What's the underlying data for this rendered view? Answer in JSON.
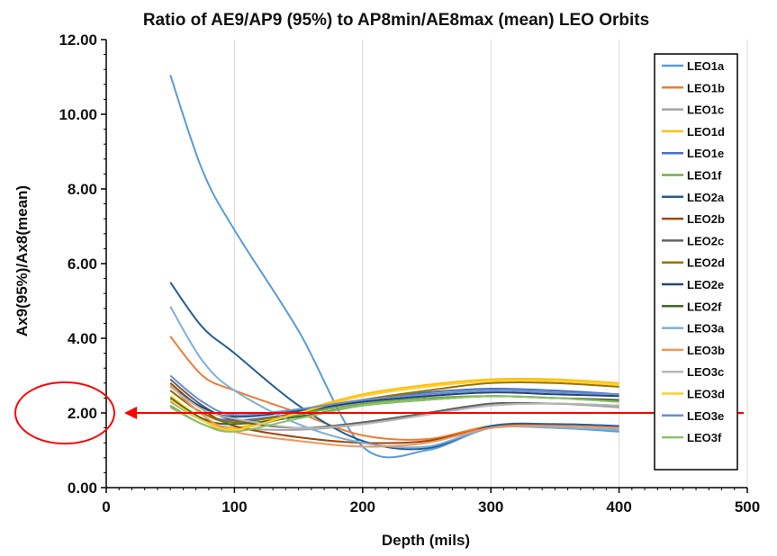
{
  "chart_data": {
    "type": "line",
    "title": "Ratio of AE9/AP9 (95%) to AP8min/AE8max (mean) LEO Orbits",
    "xlabel": "Depth (mils)",
    "ylabel": "Ax9(95%)/Ax8(mean)",
    "xlim": [
      0,
      500
    ],
    "ylim": [
      0,
      12
    ],
    "x_ticks": [
      0,
      100,
      200,
      300,
      400,
      500
    ],
    "x_tick_labels": [
      "0",
      "100",
      "200",
      "300",
      "400",
      "500"
    ],
    "y_ticks": [
      0,
      2,
      4,
      6,
      8,
      10,
      12
    ],
    "y_tick_labels": [
      "0.00",
      "2.00",
      "4.00",
      "6.00",
      "8.00",
      "10.00",
      "12.00"
    ],
    "grid": "vertical major gridlines",
    "legend_position": "right",
    "x": [
      50,
      75,
      100,
      150,
      200,
      250,
      300,
      350,
      400
    ],
    "series": [
      {
        "name": "LEO1a",
        "color": "#5B9BD5",
        "values": [
          11.05,
          8.5,
          6.9,
          4.2,
          1.1,
          1.0,
          1.6,
          1.6,
          1.5
        ]
      },
      {
        "name": "LEO1b",
        "color": "#ED7D31",
        "values": [
          4.05,
          3.0,
          2.6,
          2.0,
          1.4,
          1.3,
          1.65,
          1.7,
          1.65
        ]
      },
      {
        "name": "LEO1c",
        "color": "#A5A5A5",
        "values": [
          2.3,
          1.8,
          1.6,
          1.55,
          1.7,
          2.0,
          2.2,
          2.25,
          2.15
        ]
      },
      {
        "name": "LEO1d",
        "color": "#FFC000",
        "values": [
          2.45,
          1.85,
          1.6,
          2.05,
          2.5,
          2.75,
          2.9,
          2.9,
          2.8
        ]
      },
      {
        "name": "LEO1e",
        "color": "#4472C4",
        "values": [
          2.6,
          2.0,
          1.8,
          2.0,
          2.35,
          2.55,
          2.65,
          2.6,
          2.5
        ]
      },
      {
        "name": "LEO1f",
        "color": "#70AD47",
        "values": [
          2.2,
          1.7,
          1.55,
          1.95,
          2.25,
          2.4,
          2.45,
          2.4,
          2.3
        ]
      },
      {
        "name": "LEO2a",
        "color": "#255E91",
        "values": [
          5.5,
          4.3,
          3.6,
          2.2,
          1.25,
          1.05,
          1.65,
          1.7,
          1.65
        ]
      },
      {
        "name": "LEO2b",
        "color": "#9E480E",
        "values": [
          2.8,
          2.1,
          1.65,
          1.35,
          1.2,
          1.25,
          1.6,
          1.65,
          1.6
        ]
      },
      {
        "name": "LEO2c",
        "color": "#636363",
        "values": [
          2.9,
          2.2,
          1.8,
          1.6,
          1.75,
          2.0,
          2.25,
          2.25,
          2.2
        ]
      },
      {
        "name": "LEO2d",
        "color": "#997300",
        "values": [
          2.6,
          2.0,
          1.75,
          2.0,
          2.35,
          2.6,
          2.8,
          2.8,
          2.7
        ]
      },
      {
        "name": "LEO2e",
        "color": "#264478",
        "values": [
          2.7,
          2.15,
          1.9,
          2.05,
          2.3,
          2.45,
          2.55,
          2.5,
          2.45
        ]
      },
      {
        "name": "LEO2f",
        "color": "#43682B",
        "values": [
          2.4,
          1.85,
          1.7,
          1.9,
          2.2,
          2.35,
          2.45,
          2.4,
          2.35
        ]
      },
      {
        "name": "LEO3a",
        "color": "#7CAFDD",
        "values": [
          4.85,
          3.4,
          2.6,
          1.7,
          1.2,
          1.1,
          1.6,
          1.6,
          1.55
        ]
      },
      {
        "name": "LEO3b",
        "color": "#F1975A",
        "values": [
          2.75,
          1.95,
          1.5,
          1.25,
          1.1,
          1.2,
          1.6,
          1.65,
          1.6
        ]
      },
      {
        "name": "LEO3c",
        "color": "#B7B7B7",
        "values": [
          2.7,
          2.1,
          1.85,
          1.6,
          1.7,
          1.95,
          2.2,
          2.25,
          2.2
        ]
      },
      {
        "name": "LEO3d",
        "color": "#FFCD33",
        "values": [
          2.35,
          1.8,
          1.55,
          2.0,
          2.45,
          2.7,
          2.85,
          2.85,
          2.75
        ]
      },
      {
        "name": "LEO3e",
        "color": "#698ED0",
        "values": [
          3.0,
          2.3,
          1.95,
          2.1,
          2.35,
          2.5,
          2.6,
          2.55,
          2.5
        ]
      },
      {
        "name": "LEO3f",
        "color": "#8CC168",
        "values": [
          2.15,
          1.7,
          1.5,
          1.85,
          2.2,
          2.35,
          2.45,
          2.4,
          2.3
        ]
      }
    ],
    "annotations": {
      "arrow_value": 2.0,
      "arrow_color": "#FF0000",
      "circle_color": "#FF0000"
    }
  }
}
